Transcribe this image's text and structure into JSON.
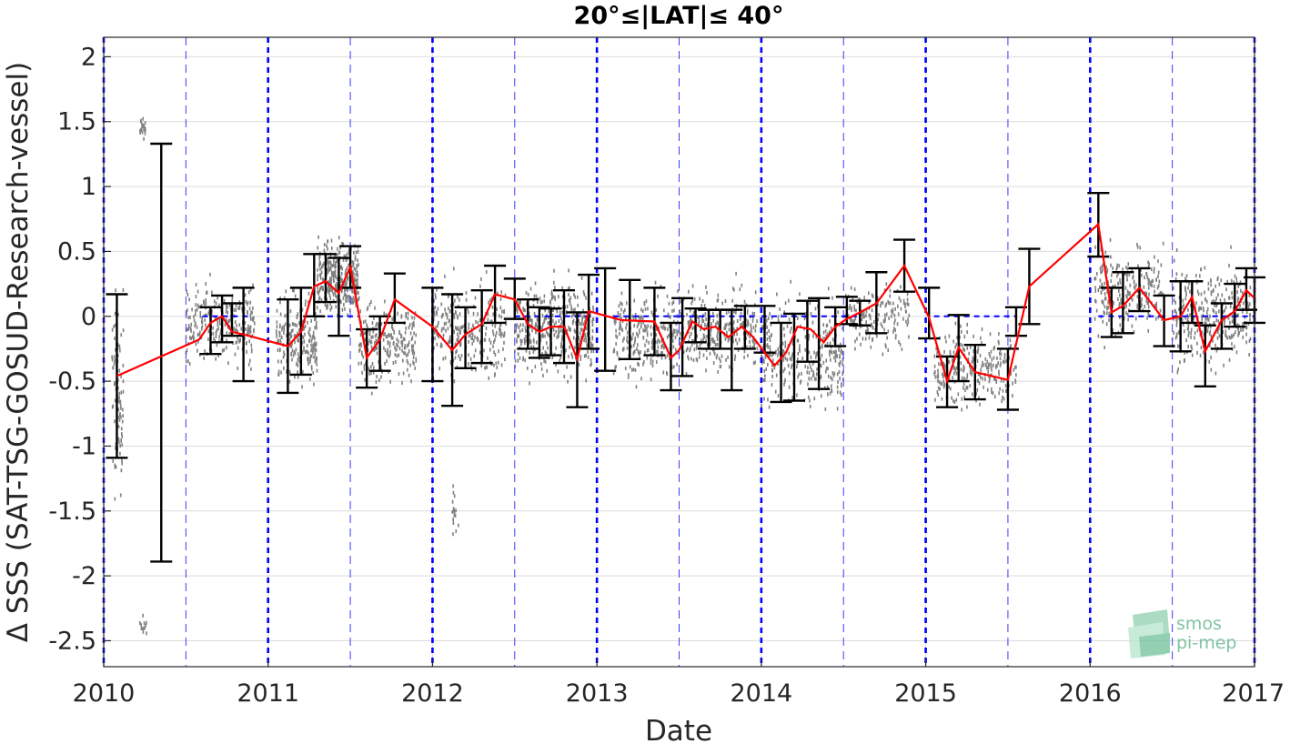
{
  "chart_data": {
    "type": "scatter",
    "title": "20°≤|LAT|≤ 40°",
    "xlabel": "Date",
    "ylabel": "Δ SSS (SAT-TSG-GOSUD-Research-vessel)",
    "xlim": [
      2010,
      2017
    ],
    "ylim": [
      -2.7,
      2.15
    ],
    "x_ticks": [
      2010,
      2011,
      2012,
      2013,
      2014,
      2015,
      2016,
      2017
    ],
    "x_tick_labels": [
      "2010",
      "2011",
      "2012",
      "2013",
      "2014",
      "2015",
      "2016",
      "2017"
    ],
    "y_ticks": [
      2,
      1.5,
      1,
      0.5,
      0,
      -0.5,
      -1,
      -1.5,
      -2,
      -2.5
    ],
    "y_tick_labels": [
      "2",
      "1.5",
      "1",
      "0.5",
      "0",
      "-0.5",
      "-1",
      "-1.5",
      "-2",
      "-2.5"
    ],
    "grid": true,
    "year_lines": [
      2010,
      2011,
      2012,
      2013,
      2014,
      2015,
      2016,
      2017
    ],
    "half_year_lines": [
      2010.5,
      2011.5,
      2012.5,
      2013.5,
      2014.5,
      2015.5,
      2016.5
    ],
    "colors": {
      "scatter": "#808080",
      "mean_line": "#ff0000",
      "error_bars": "#000000",
      "year_lines": "#0000ff",
      "zero_line": "#0000ff",
      "grid": "#dcdcdc"
    },
    "scatter_clusters": [
      {
        "x0": 2010.05,
        "x1": 2010.12,
        "center": -0.6,
        "spread": 0.7,
        "n": 90
      },
      {
        "x0": 2010.22,
        "x1": 2010.26,
        "center": 1.45,
        "spread": 0.08,
        "n": 20
      },
      {
        "x0": 2010.22,
        "x1": 2010.26,
        "center": -2.4,
        "spread": 0.08,
        "n": 12
      },
      {
        "x0": 2010.5,
        "x1": 2010.92,
        "center": -0.05,
        "spread": 0.28,
        "n": 260
      },
      {
        "x0": 2011.05,
        "x1": 2011.3,
        "center": -0.2,
        "spread": 0.32,
        "n": 220
      },
      {
        "x0": 2011.3,
        "x1": 2011.55,
        "center": 0.3,
        "spread": 0.25,
        "n": 320
      },
      {
        "x0": 2011.55,
        "x1": 2011.9,
        "center": -0.2,
        "spread": 0.3,
        "n": 240
      },
      {
        "x0": 2012.0,
        "x1": 2012.45,
        "center": -0.1,
        "spread": 0.32,
        "n": 260
      },
      {
        "x0": 2012.12,
        "x1": 2012.16,
        "center": -1.5,
        "spread": 0.2,
        "n": 18
      },
      {
        "x0": 2012.5,
        "x1": 2012.98,
        "center": -0.1,
        "spread": 0.32,
        "n": 420
      },
      {
        "x0": 2013.1,
        "x1": 2013.5,
        "center": -0.15,
        "spread": 0.3,
        "n": 260
      },
      {
        "x0": 2013.5,
        "x1": 2013.98,
        "center": -0.1,
        "spread": 0.3,
        "n": 300
      },
      {
        "x0": 2014.0,
        "x1": 2014.5,
        "center": -0.3,
        "spread": 0.38,
        "n": 320
      },
      {
        "x0": 2014.5,
        "x1": 2014.9,
        "center": 0.0,
        "spread": 0.22,
        "n": 160
      },
      {
        "x0": 2015.05,
        "x1": 2015.55,
        "center": -0.4,
        "spread": 0.28,
        "n": 260
      },
      {
        "x0": 2016.02,
        "x1": 2016.45,
        "center": 0.2,
        "spread": 0.32,
        "n": 240
      },
      {
        "x0": 2016.5,
        "x1": 2016.98,
        "center": 0.0,
        "spread": 0.35,
        "n": 330
      }
    ],
    "mean_series": {
      "name": "",
      "x": [
        2010.08,
        2010.58,
        2010.65,
        2010.72,
        2010.78,
        2010.85,
        2011.12,
        2011.2,
        2011.28,
        2011.35,
        2011.43,
        2011.5,
        2011.6,
        2011.68,
        2011.77,
        2012.0,
        2012.12,
        2012.2,
        2012.3,
        2012.38,
        2012.5,
        2012.58,
        2012.65,
        2012.72,
        2012.8,
        2012.88,
        2012.95,
        2013.15,
        2013.35,
        2013.45,
        2013.5,
        2013.58,
        2013.65,
        2013.72,
        2013.8,
        2013.88,
        2013.95,
        2014.08,
        2014.15,
        2014.22,
        2014.3,
        2014.38,
        2014.45,
        2014.52,
        2014.6,
        2014.7,
        2014.87,
        2015.02,
        2015.13,
        2015.2,
        2015.3,
        2015.5,
        2015.63,
        2016.05,
        2016.13,
        2016.2,
        2016.3,
        2016.45,
        2016.55,
        2016.62,
        2016.7,
        2016.8,
        2016.88,
        2016.95,
        2017.0
      ],
      "y": [
        -0.46,
        -0.18,
        -0.05,
        0.0,
        -0.12,
        -0.14,
        -0.23,
        -0.12,
        0.23,
        0.27,
        0.18,
        0.38,
        -0.32,
        -0.18,
        0.13,
        -0.08,
        -0.26,
        -0.14,
        -0.06,
        0.17,
        0.13,
        -0.06,
        -0.12,
        -0.08,
        -0.08,
        -0.33,
        0.04,
        -0.03,
        -0.04,
        -0.32,
        -0.26,
        -0.04,
        -0.1,
        -0.08,
        -0.16,
        -0.08,
        -0.16,
        -0.38,
        -0.28,
        -0.08,
        -0.1,
        -0.2,
        -0.08,
        -0.02,
        0.03,
        0.1,
        0.39,
        -0.01,
        -0.5,
        -0.24,
        -0.43,
        -0.49,
        0.23,
        0.71,
        0.03,
        0.08,
        0.22,
        -0.03,
        0.0,
        0.15,
        -0.27,
        -0.03,
        0.04,
        0.2,
        0.14
      ]
    },
    "error_bars": [
      {
        "x": 2010.08,
        "low": -1.09,
        "high": 0.17
      },
      {
        "x": 2010.35,
        "low": -1.89,
        "high": 1.33
      },
      {
        "x": 2010.65,
        "low": -0.29,
        "high": 0.07
      },
      {
        "x": 2010.72,
        "low": -0.2,
        "high": 0.16
      },
      {
        "x": 2010.78,
        "low": -0.15,
        "high": 0.1
      },
      {
        "x": 2010.85,
        "low": -0.5,
        "high": 0.22
      },
      {
        "x": 2011.12,
        "low": -0.59,
        "high": 0.13
      },
      {
        "x": 2011.2,
        "low": -0.45,
        "high": 0.22
      },
      {
        "x": 2011.28,
        "low": 0.0,
        "high": 0.48
      },
      {
        "x": 2011.35,
        "low": 0.11,
        "high": 0.48
      },
      {
        "x": 2011.43,
        "low": -0.15,
        "high": 0.45
      },
      {
        "x": 2011.5,
        "low": 0.22,
        "high": 0.54
      },
      {
        "x": 2011.6,
        "low": -0.55,
        "high": -0.1
      },
      {
        "x": 2011.68,
        "low": -0.42,
        "high": 0.0
      },
      {
        "x": 2011.77,
        "low": -0.05,
        "high": 0.33
      },
      {
        "x": 2012.0,
        "low": -0.5,
        "high": 0.22
      },
      {
        "x": 2012.12,
        "low": -0.69,
        "high": 0.17
      },
      {
        "x": 2012.2,
        "low": -0.4,
        "high": 0.07
      },
      {
        "x": 2012.3,
        "low": -0.36,
        "high": 0.2
      },
      {
        "x": 2012.38,
        "low": -0.05,
        "high": 0.39
      },
      {
        "x": 2012.5,
        "low": -0.02,
        "high": 0.29
      },
      {
        "x": 2012.58,
        "low": -0.25,
        "high": 0.13
      },
      {
        "x": 2012.65,
        "low": -0.32,
        "high": 0.07
      },
      {
        "x": 2012.72,
        "low": -0.3,
        "high": 0.06
      },
      {
        "x": 2012.8,
        "low": -0.36,
        "high": 0.2
      },
      {
        "x": 2012.88,
        "low": -0.7,
        "high": 0.03
      },
      {
        "x": 2012.95,
        "low": -0.25,
        "high": 0.32
      },
      {
        "x": 2013.05,
        "low": -0.42,
        "high": 0.37
      },
      {
        "x": 2013.2,
        "low": -0.33,
        "high": 0.28
      },
      {
        "x": 2013.35,
        "low": -0.3,
        "high": 0.22
      },
      {
        "x": 2013.45,
        "low": -0.57,
        "high": -0.05
      },
      {
        "x": 2013.52,
        "low": -0.46,
        "high": 0.14
      },
      {
        "x": 2013.6,
        "low": -0.2,
        "high": 0.06
      },
      {
        "x": 2013.68,
        "low": -0.25,
        "high": 0.05
      },
      {
        "x": 2013.75,
        "low": -0.25,
        "high": 0.05
      },
      {
        "x": 2013.82,
        "low": -0.57,
        "high": 0.05
      },
      {
        "x": 2013.9,
        "low": -0.25,
        "high": 0.08
      },
      {
        "x": 2014.02,
        "low": -0.28,
        "high": 0.08
      },
      {
        "x": 2014.12,
        "low": -0.66,
        "high": -0.05
      },
      {
        "x": 2014.2,
        "low": -0.65,
        "high": 0.02
      },
      {
        "x": 2014.28,
        "low": -0.35,
        "high": 0.12
      },
      {
        "x": 2014.35,
        "low": -0.56,
        "high": 0.14
      },
      {
        "x": 2014.45,
        "low": -0.23,
        "high": 0.07
      },
      {
        "x": 2014.52,
        "low": -0.06,
        "high": 0.15
      },
      {
        "x": 2014.6,
        "low": -0.07,
        "high": 0.12
      },
      {
        "x": 2014.7,
        "low": -0.13,
        "high": 0.34
      },
      {
        "x": 2014.87,
        "low": 0.19,
        "high": 0.59
      },
      {
        "x": 2015.02,
        "low": -0.17,
        "high": 0.22
      },
      {
        "x": 2015.13,
        "low": -0.7,
        "high": -0.31
      },
      {
        "x": 2015.2,
        "low": -0.5,
        "high": 0.01
      },
      {
        "x": 2015.3,
        "low": -0.64,
        "high": -0.22
      },
      {
        "x": 2015.5,
        "low": -0.72,
        "high": -0.25
      },
      {
        "x": 2015.55,
        "low": -0.15,
        "high": 0.07
      },
      {
        "x": 2015.63,
        "low": -0.06,
        "high": 0.52
      },
      {
        "x": 2016.05,
        "low": 0.46,
        "high": 0.95
      },
      {
        "x": 2016.13,
        "low": -0.16,
        "high": 0.22
      },
      {
        "x": 2016.2,
        "low": -0.13,
        "high": 0.34
      },
      {
        "x": 2016.3,
        "low": 0.04,
        "high": 0.37
      },
      {
        "x": 2016.45,
        "low": -0.23,
        "high": 0.16
      },
      {
        "x": 2016.55,
        "low": -0.27,
        "high": 0.27
      },
      {
        "x": 2016.62,
        "low": -0.05,
        "high": 0.27
      },
      {
        "x": 2016.7,
        "low": -0.54,
        "high": -0.07
      },
      {
        "x": 2016.8,
        "low": -0.25,
        "high": 0.1
      },
      {
        "x": 2016.88,
        "low": -0.08,
        "high": 0.25
      },
      {
        "x": 2016.95,
        "low": 0.05,
        "high": 0.37
      },
      {
        "x": 2017.0,
        "low": -0.05,
        "high": 0.3
      }
    ],
    "zero_line_segments": [
      [
        2010.6,
        2010.9
      ],
      [
        2011.3,
        2011.55
      ],
      [
        2012.5,
        2012.98
      ],
      [
        2013.1,
        2013.5
      ],
      [
        2013.5,
        2013.98
      ],
      [
        2014.0,
        2014.6
      ],
      [
        2015.05,
        2015.55
      ],
      [
        2016.05,
        2016.45
      ],
      [
        2016.5,
        2017.0
      ]
    ]
  },
  "logo": {
    "line1": "smos",
    "line2": "pi-mep"
  }
}
